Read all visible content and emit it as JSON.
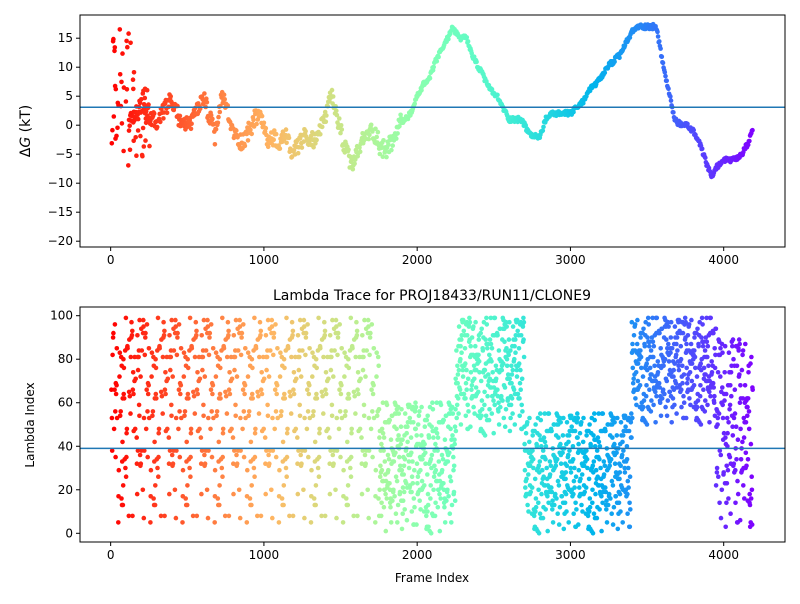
{
  "colors": {
    "reference_line": "#1f77b4",
    "axes": "#000000",
    "background": "#ffffff",
    "colormap": "rainbow"
  },
  "chart_data": [
    {
      "type": "scatter",
      "title": "",
      "xlabel": "",
      "ylabel": "ΔG (kT)",
      "ylabel_parts": {
        "delta": "Δ",
        "symbol": "G",
        "unit": " (kT)"
      },
      "xlim": [
        -200,
        4400
      ],
      "ylim": [
        -21,
        19
      ],
      "xticks": [
        0,
        1000,
        2000,
        3000,
        4000
      ],
      "yticks": [
        -20,
        -15,
        -10,
        -5,
        0,
        5,
        10,
        15
      ],
      "hline": 3.1,
      "color_by": "x-position, rainbow (red at start, violet at end)",
      "trace_anchors": {
        "x": [
          120,
          160,
          200,
          240,
          280,
          300,
          340,
          380,
          420,
          450,
          500,
          540,
          580,
          600,
          640,
          680,
          720,
          740,
          780,
          820,
          860,
          900,
          940,
          980,
          1020,
          1060,
          1100,
          1140,
          1180,
          1220,
          1260,
          1300,
          1340,
          1380,
          1420,
          1440,
          1470,
          1500,
          1540,
          1580,
          1620,
          1660,
          1700,
          1740,
          1760,
          1800,
          1840,
          1880,
          1920,
          1960,
          2000,
          2040,
          2080,
          2120,
          2160,
          2200,
          2230,
          2250,
          2280,
          2320,
          2360,
          2400,
          2440,
          2480,
          2520,
          2560,
          2600,
          2640,
          2680,
          2720,
          2760,
          2800,
          2840,
          2880,
          2920,
          2960,
          3000,
          3040,
          3080,
          3120,
          3160,
          3200,
          3240,
          3280,
          3320,
          3360,
          3400,
          3440,
          3480,
          3520,
          3560,
          3600,
          3640,
          3680,
          3720,
          3760,
          3800,
          3840,
          3880,
          3920,
          3960,
          4000,
          4040,
          4080,
          4120,
          4160,
          4190
        ],
        "y": [
          0,
          2,
          3,
          2,
          1,
          0,
          2,
          4,
          3,
          1,
          0,
          1,
          3,
          5,
          2,
          -2,
          4,
          5,
          0,
          -2,
          -3,
          -1,
          1,
          2,
          -3,
          -2,
          -4,
          -1,
          -5,
          -4,
          -2,
          -3,
          -2,
          0,
          3,
          5,
          2,
          -1,
          -5,
          -7,
          -4,
          -2,
          -1,
          -2,
          -4,
          -4,
          -3,
          0,
          1,
          2,
          5,
          7,
          8,
          11,
          13,
          15,
          17,
          16,
          15,
          15,
          12,
          10,
          8,
          6,
          5,
          3,
          1,
          1,
          1,
          -1,
          -2,
          -2,
          1,
          2,
          2,
          2,
          2,
          3,
          4,
          6,
          7,
          8,
          10,
          11,
          12,
          14,
          16,
          17,
          17,
          17,
          17,
          11,
          6,
          1,
          0,
          0,
          -1,
          -3,
          -6,
          -9,
          -7,
          -6,
          -6,
          -6,
          -5,
          -3,
          -1
        ]
      },
      "early_spread_anchors": {
        "x": [
          10,
          20,
          40,
          60,
          80,
          100,
          120,
          160,
          200,
          240
        ],
        "ymax": [
          18,
          18,
          18,
          18,
          18,
          18,
          17,
          12,
          8,
          6
        ],
        "ymin": [
          -8,
          -5,
          -4,
          -3,
          -6,
          -10,
          -12,
          -9,
          -8,
          -5
        ]
      }
    },
    {
      "type": "scatter",
      "title": "Lambda Trace for PROJ18433/RUN11/CLONE9",
      "xlabel": "Frame Index",
      "ylabel": "Lambda Index",
      "xlim": [
        -200,
        4400
      ],
      "ylim": [
        -4,
        104
      ],
      "xticks": [
        0,
        1000,
        2000,
        3000,
        4000
      ],
      "yticks": [
        0,
        20,
        40,
        60,
        80,
        100
      ],
      "hline": 39,
      "color_by": "x-position, rainbow (red at start, violet at end)",
      "density_regimes": [
        {
          "x_range": [
            0,
            1750
          ],
          "lambda_range": [
            0,
            99
          ],
          "note": "uniform spread"
        },
        {
          "x_range": [
            1750,
            2250
          ],
          "lambda_range": [
            0,
            60
          ],
          "note": "low lambda"
        },
        {
          "x_range": [
            2250,
            2700
          ],
          "lambda_range": [
            45,
            99
          ],
          "note": "high lambda"
        },
        {
          "x_range": [
            2700,
            3400
          ],
          "lambda_range": [
            0,
            55
          ],
          "note": "low lambda"
        },
        {
          "x_range": [
            3400,
            3950
          ],
          "lambda_range": [
            50,
            99
          ],
          "note": "high lambda"
        },
        {
          "x_range": [
            3950,
            4200
          ],
          "lambda_range": [
            0,
            90
          ],
          "note": "mixed"
        }
      ]
    }
  ]
}
